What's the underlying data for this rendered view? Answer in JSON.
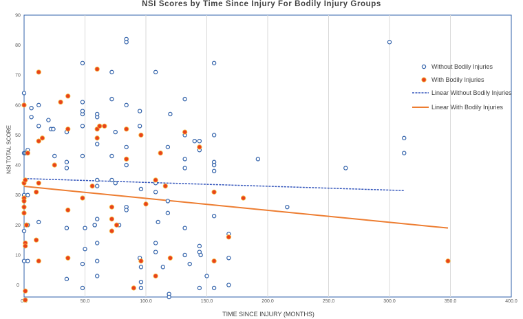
{
  "chart_data": {
    "type": "scatter",
    "title": "NSI Scores by Time Since Injury For Bodily Injury Groups",
    "xlabel": "TIME SINCE INJURY (MONTHS)",
    "ylabel": "NSI TOTAL SCORE",
    "xlim": [
      0,
      400
    ],
    "ylim": [
      -4,
      90
    ],
    "x_ticks": [
      0,
      50,
      100,
      150,
      200,
      250,
      300,
      350,
      400
    ],
    "x_tick_labels": [
      "0.0",
      "50.0",
      "100.0",
      "150.0",
      "200.0",
      "250.0",
      "300.0",
      "350.0",
      "400.0"
    ],
    "y_ticks": [
      0,
      10,
      20,
      30,
      40,
      50,
      60,
      70,
      80,
      90
    ],
    "y_tick_labels": [
      "0",
      "10",
      "20",
      "30",
      "40",
      "50",
      "60",
      "70",
      "80",
      "90"
    ],
    "grid": "vertical lines",
    "legend_position": "right",
    "series": [
      {
        "name": "Without Bodily Injuries",
        "marker": "hollow-circle",
        "color": "#2e5fa8",
        "points": [
          [
            0,
            64
          ],
          [
            0,
            18
          ],
          [
            0,
            8
          ],
          [
            0,
            30
          ],
          [
            0,
            44
          ],
          [
            1,
            44
          ],
          [
            2,
            44
          ],
          [
            3,
            45
          ],
          [
            3,
            30
          ],
          [
            3,
            8
          ],
          [
            3,
            20
          ],
          [
            6,
            59
          ],
          [
            6,
            56
          ],
          [
            12,
            71
          ],
          [
            12,
            60
          ],
          [
            12,
            53
          ],
          [
            12,
            21
          ],
          [
            20,
            55
          ],
          [
            22,
            52
          ],
          [
            24,
            52
          ],
          [
            25,
            43
          ],
          [
            35,
            39
          ],
          [
            35,
            41
          ],
          [
            35,
            51
          ],
          [
            35,
            19
          ],
          [
            35,
            2
          ],
          [
            48,
            74
          ],
          [
            48,
            61
          ],
          [
            48,
            57
          ],
          [
            48,
            58
          ],
          [
            48,
            53
          ],
          [
            48,
            43
          ],
          [
            48,
            7
          ],
          [
            48,
            -1
          ],
          [
            50,
            12
          ],
          [
            50,
            19
          ],
          [
            58,
            20
          ],
          [
            58,
            20
          ],
          [
            60,
            56
          ],
          [
            60,
            57
          ],
          [
            60,
            47
          ],
          [
            60,
            35
          ],
          [
            60,
            33
          ],
          [
            60,
            22
          ],
          [
            60,
            14
          ],
          [
            60,
            8
          ],
          [
            60,
            3
          ],
          [
            72,
            71
          ],
          [
            72,
            43
          ],
          [
            72,
            62
          ],
          [
            72,
            35
          ],
          [
            75,
            51
          ],
          [
            75,
            34
          ],
          [
            78,
            20
          ],
          [
            84,
            82
          ],
          [
            84,
            81
          ],
          [
            84,
            60
          ],
          [
            84,
            46
          ],
          [
            84,
            40
          ],
          [
            84,
            26
          ],
          [
            84,
            25
          ],
          [
            95,
            58
          ],
          [
            95,
            53
          ],
          [
            95,
            9
          ],
          [
            96,
            1
          ],
          [
            96,
            -1
          ],
          [
            96,
            6
          ],
          [
            96,
            32
          ],
          [
            108,
            71
          ],
          [
            108,
            14
          ],
          [
            108,
            11
          ],
          [
            108,
            34
          ],
          [
            108,
            31
          ],
          [
            110,
            21
          ],
          [
            114,
            6
          ],
          [
            118,
            24
          ],
          [
            118,
            28
          ],
          [
            118,
            46
          ],
          [
            119,
            -3
          ],
          [
            119,
            -4
          ],
          [
            120,
            57
          ],
          [
            132,
            62
          ],
          [
            132,
            50
          ],
          [
            132,
            42
          ],
          [
            132,
            39
          ],
          [
            132,
            19
          ],
          [
            132,
            10
          ],
          [
            136,
            7
          ],
          [
            140,
            48
          ],
          [
            144,
            48
          ],
          [
            144,
            45
          ],
          [
            144,
            13
          ],
          [
            144,
            11
          ],
          [
            145,
            10
          ],
          [
            144,
            -1
          ],
          [
            150,
            3
          ],
          [
            156,
            74
          ],
          [
            156,
            50
          ],
          [
            156,
            41
          ],
          [
            156,
            40
          ],
          [
            156,
            38
          ],
          [
            156,
            23
          ],
          [
            156,
            -1
          ],
          [
            168,
            17
          ],
          [
            168,
            9
          ],
          [
            168,
            0
          ],
          [
            192,
            42
          ],
          [
            216,
            26
          ],
          [
            264,
            39
          ],
          [
            300,
            81
          ],
          [
            312,
            49
          ],
          [
            312,
            44
          ]
        ]
      },
      {
        "name": "With Bodily Injuries",
        "marker": "filled-circle",
        "color": "#e8421c",
        "points": [
          [
            0,
            60
          ],
          [
            0,
            34
          ],
          [
            0,
            29
          ],
          [
            0,
            28
          ],
          [
            0,
            26
          ],
          [
            0,
            24
          ],
          [
            1,
            35
          ],
          [
            1,
            14
          ],
          [
            1,
            13
          ],
          [
            1,
            -2
          ],
          [
            1,
            -5
          ],
          [
            2,
            20
          ],
          [
            3,
            44
          ],
          [
            10,
            31
          ],
          [
            10,
            15
          ],
          [
            12,
            71
          ],
          [
            12,
            48
          ],
          [
            12,
            34
          ],
          [
            12,
            8
          ],
          [
            15,
            49
          ],
          [
            25,
            40
          ],
          [
            30,
            61
          ],
          [
            36,
            63
          ],
          [
            36,
            52
          ],
          [
            36,
            25
          ],
          [
            36,
            9
          ],
          [
            48,
            29
          ],
          [
            56,
            33
          ],
          [
            60,
            72
          ],
          [
            60,
            52
          ],
          [
            60,
            49
          ],
          [
            62,
            53
          ],
          [
            66,
            53
          ],
          [
            72,
            26
          ],
          [
            72,
            22
          ],
          [
            72,
            18
          ],
          [
            76,
            20
          ],
          [
            84,
            52
          ],
          [
            84,
            42
          ],
          [
            90,
            -1
          ],
          [
            96,
            50
          ],
          [
            96,
            8
          ],
          [
            100,
            27
          ],
          [
            108,
            35
          ],
          [
            108,
            3
          ],
          [
            112,
            44
          ],
          [
            116,
            33
          ],
          [
            120,
            9
          ],
          [
            132,
            51
          ],
          [
            144,
            46
          ],
          [
            156,
            31
          ],
          [
            156,
            8
          ],
          [
            168,
            16
          ],
          [
            180,
            29
          ],
          [
            348,
            8
          ]
        ]
      }
    ],
    "trendlines": [
      {
        "name": "Linear Without Bodily Injuries",
        "style": "dashed",
        "color": "#3355bb",
        "x": [
          0,
          312
        ],
        "y": [
          35.5,
          31.5
        ]
      },
      {
        "name": "Linear With Bodily Injuries",
        "style": "solid",
        "color": "#ed7d31",
        "x": [
          0,
          348
        ],
        "y": [
          32.9,
          19.0
        ]
      }
    ]
  }
}
